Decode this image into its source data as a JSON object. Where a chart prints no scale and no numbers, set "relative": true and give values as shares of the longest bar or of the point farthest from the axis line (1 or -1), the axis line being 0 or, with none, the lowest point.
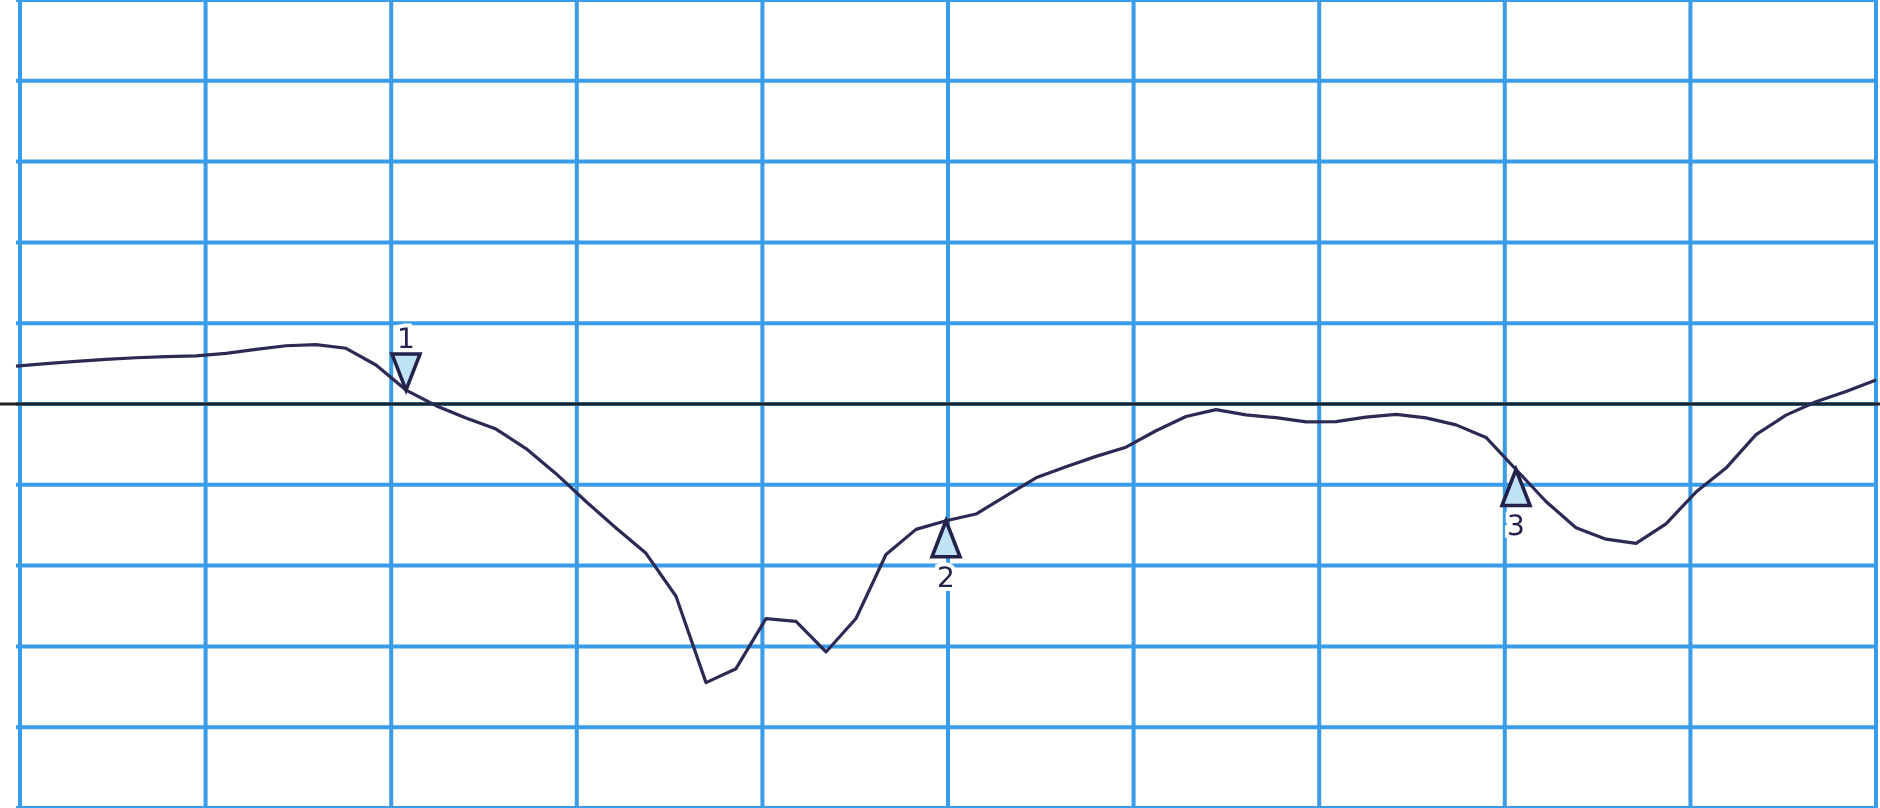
{
  "chart_data": {
    "type": "line",
    "relative": true,
    "grid": true,
    "categories": [
      null,
      null,
      null,
      null,
      null,
      null,
      null,
      null,
      null,
      null,
      null,
      null,
      null,
      null,
      null,
      null,
      null,
      null,
      null,
      null,
      null,
      null,
      null,
      null,
      null,
      null,
      null,
      null,
      null,
      null,
      null,
      null,
      null,
      null,
      null,
      null,
      null,
      null,
      null,
      null,
      null,
      null,
      null,
      null,
      null,
      null,
      null,
      null,
      null,
      null,
      null,
      null,
      null,
      null,
      null,
      null,
      null,
      null,
      null,
      null,
      null,
      null,
      null
    ],
    "series": [
      {
        "color": "#2a2a55",
        "values": [
          0.136,
          0.145,
          0.153,
          0.16,
          0.166,
          0.17,
          0.173,
          0.182,
          0.196,
          0.209,
          0.213,
          0.2,
          0.14,
          0.05,
          -0.006,
          -0.05,
          -0.09,
          -0.16,
          -0.25,
          -0.35,
          -0.445,
          -0.536,
          -0.69,
          -1,
          -0.95,
          -0.77,
          -0.78,
          -0.89,
          -0.77,
          -0.54,
          -0.45,
          -0.419,
          -0.395,
          -0.33,
          -0.265,
          -0.225,
          -0.188,
          -0.155,
          -0.096,
          -0.045,
          -0.02,
          -0.039,
          -0.049,
          -0.064,
          -0.063,
          -0.047,
          -0.037,
          -0.05,
          -0.075,
          -0.12,
          -0.235,
          -0.35,
          -0.444,
          -0.485,
          -0.5,
          -0.43,
          -0.316,
          -0.23,
          -0.11,
          -0.04,
          0.008,
          0.045,
          0.086
        ]
      }
    ],
    "annotations": [
      {
        "text": "1",
        "y": 0.05
      },
      {
        "text": "2",
        "y": -0.419
      },
      {
        "text": "3",
        "y": -0.235
      }
    ]
  }
}
